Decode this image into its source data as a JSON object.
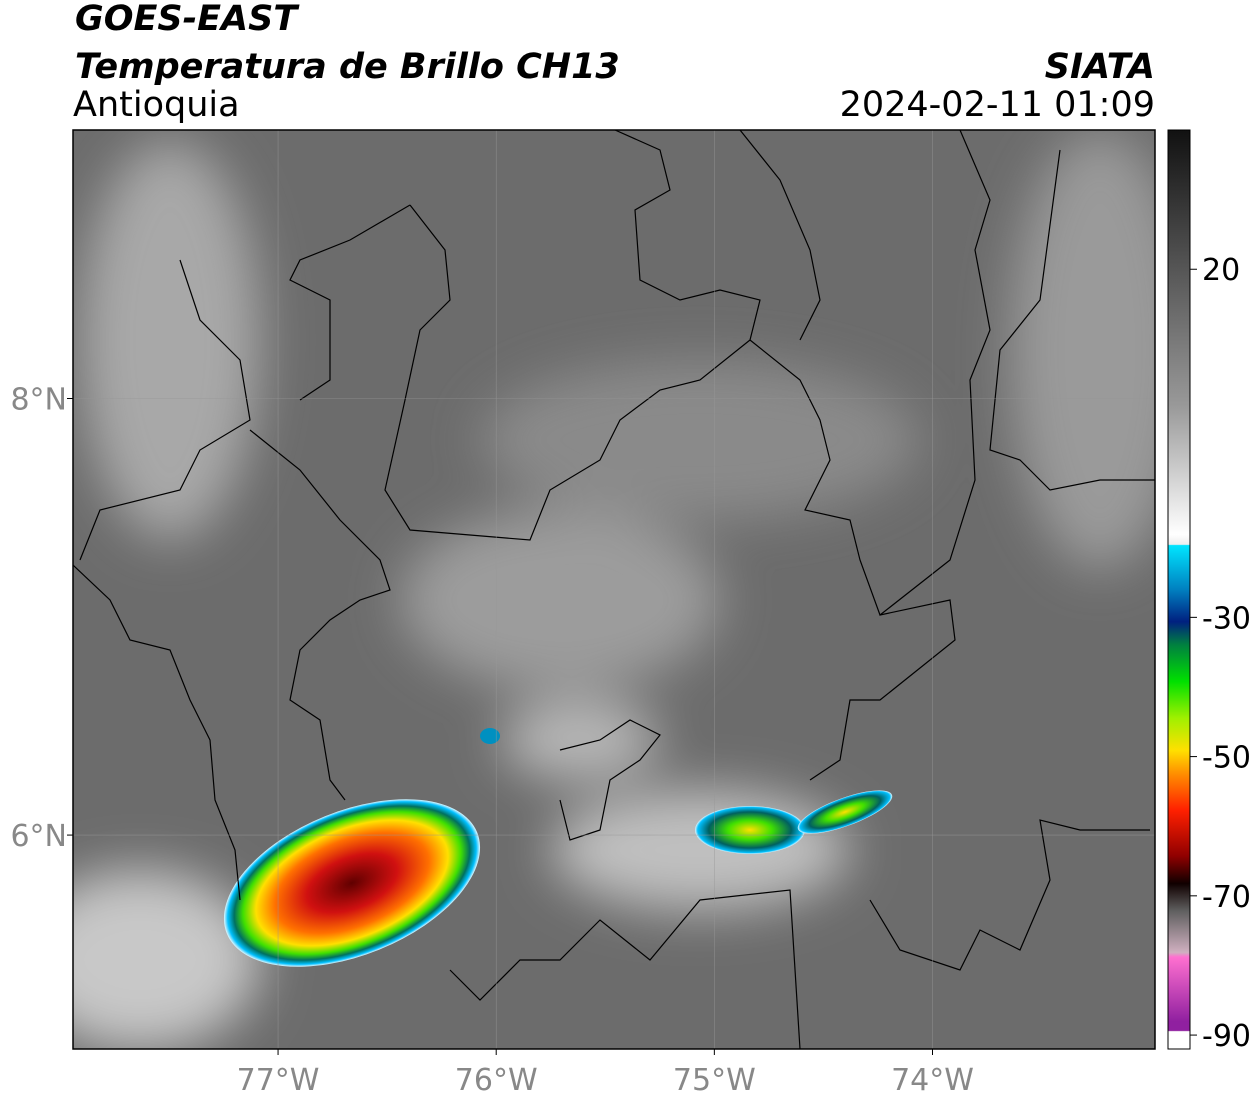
{
  "header": {
    "title": "GOES-EAST",
    "subtitle": "Temperatura de Brillo CH13",
    "region": "Antioquia",
    "source": "SIATA",
    "timestamp": "2024-02-11 01:09"
  },
  "map": {
    "lon_range": [
      -77.94,
      -72.98
    ],
    "lat_range": [
      5.02,
      9.23
    ],
    "lon_ticks": [
      {
        "value": -77,
        "label": "77°W"
      },
      {
        "value": -76,
        "label": "76°W"
      },
      {
        "value": -75,
        "label": "75°W"
      },
      {
        "value": -74,
        "label": "74°W"
      }
    ],
    "lat_ticks": [
      {
        "value": 8,
        "label": "8°N"
      },
      {
        "value": 6,
        "label": "6°N"
      }
    ],
    "grid": true
  },
  "colorbar": {
    "range": [
      -92,
      40
    ],
    "ticks": [
      20,
      -30,
      -50,
      -70,
      -90
    ]
  }
}
